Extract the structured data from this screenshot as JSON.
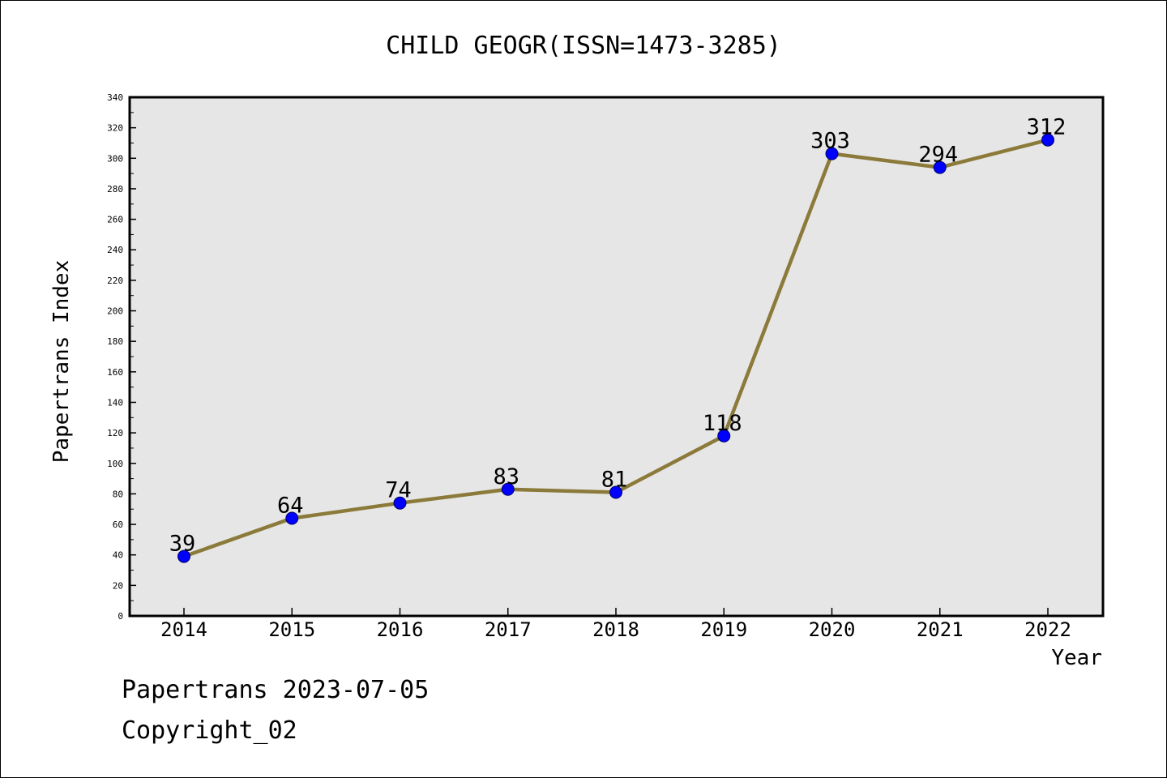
{
  "chart_data": {
    "type": "line",
    "title": "CHILD GEOGR(ISSN=1473-3285)",
    "xlabel": "Year",
    "ylabel": "Papertrans Index",
    "categories": [
      "2014",
      "2015",
      "2016",
      "2017",
      "2018",
      "2019",
      "2020",
      "2021",
      "2022"
    ],
    "series": [
      {
        "values": [
          39,
          64,
          74,
          83,
          81,
          118,
          303,
          294,
          312
        ]
      }
    ],
    "ylim": [
      0,
      340
    ],
    "y_ticks": [
      0,
      20,
      40,
      60,
      80,
      100,
      120,
      140,
      160,
      180,
      200,
      220,
      240,
      260,
      280,
      300,
      320,
      340
    ],
    "grid": false,
    "legend": "none",
    "data_labels": true,
    "colors": {
      "line": "#8b7a3a",
      "marker": "#0000ff",
      "plot_background": "#e6e6e6"
    }
  },
  "footer": {
    "date_line": "Papertrans 2023-07-05",
    "copyright_line": "Copyright_02"
  }
}
